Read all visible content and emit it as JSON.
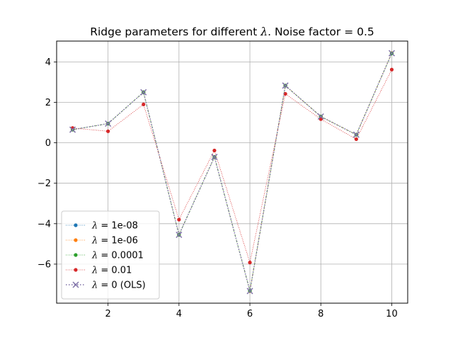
{
  "chart_data": {
    "type": "line",
    "title": "Ridge parameters for different λ. Noise factor = 0.5",
    "title_parts": {
      "prefix": "Ridge parameters for different ",
      "symbol": "λ",
      "suffix": ". Noise factor = 0.5"
    },
    "xlabel": "",
    "ylabel": "",
    "xlim": [
      0.55,
      10.45
    ],
    "ylim": [
      -7.93,
      5.03
    ],
    "xticks": [
      2,
      4,
      6,
      8,
      10
    ],
    "yticks": [
      -6,
      -4,
      -2,
      0,
      2,
      4
    ],
    "xtick_labels": [
      "2",
      "4",
      "6",
      "8",
      "10"
    ],
    "ytick_labels": [
      "−6",
      "−4",
      "−2",
      "0",
      "2",
      "4"
    ],
    "grid": true,
    "legend_position": "lower-left",
    "x": [
      1,
      2,
      3,
      4,
      5,
      6,
      7,
      8,
      9,
      10
    ],
    "series": [
      {
        "legend_symbol": "λ",
        "legend_value": " = 1e-08",
        "color": "#1f77b4",
        "linestyle": "dotted",
        "marker": "dot",
        "values": [
          0.65,
          0.95,
          2.5,
          -4.55,
          -0.7,
          -7.33,
          2.83,
          1.3,
          0.4,
          4.43
        ]
      },
      {
        "legend_symbol": "λ",
        "legend_value": " = 1e-06",
        "color": "#ff7f0e",
        "linestyle": "dotted",
        "marker": "dot",
        "values": [
          0.65,
          0.95,
          2.5,
          -4.55,
          -0.7,
          -7.33,
          2.83,
          1.3,
          0.4,
          4.43
        ]
      },
      {
        "legend_symbol": "λ",
        "legend_value": " = 0.0001",
        "color": "#2ca02c",
        "linestyle": "dotted",
        "marker": "dot",
        "values": [
          0.65,
          0.95,
          2.5,
          -4.55,
          -0.7,
          -7.32,
          2.83,
          1.3,
          0.4,
          4.42
        ]
      },
      {
        "legend_symbol": "λ",
        "legend_value": " = 0.01",
        "color": "#d62728",
        "linestyle": "dotted",
        "marker": "dot",
        "values": [
          0.73,
          0.57,
          1.9,
          -3.8,
          -0.38,
          -5.92,
          2.42,
          1.17,
          0.18,
          3.62
        ]
      },
      {
        "legend_symbol": "λ",
        "legend_value": " = 0 (OLS)",
        "color": "#8073a8",
        "linestyle": "dotted",
        "marker": "x",
        "values": [
          0.65,
          0.95,
          2.5,
          -4.55,
          -0.7,
          -7.33,
          2.83,
          1.3,
          0.4,
          4.43
        ]
      }
    ]
  }
}
